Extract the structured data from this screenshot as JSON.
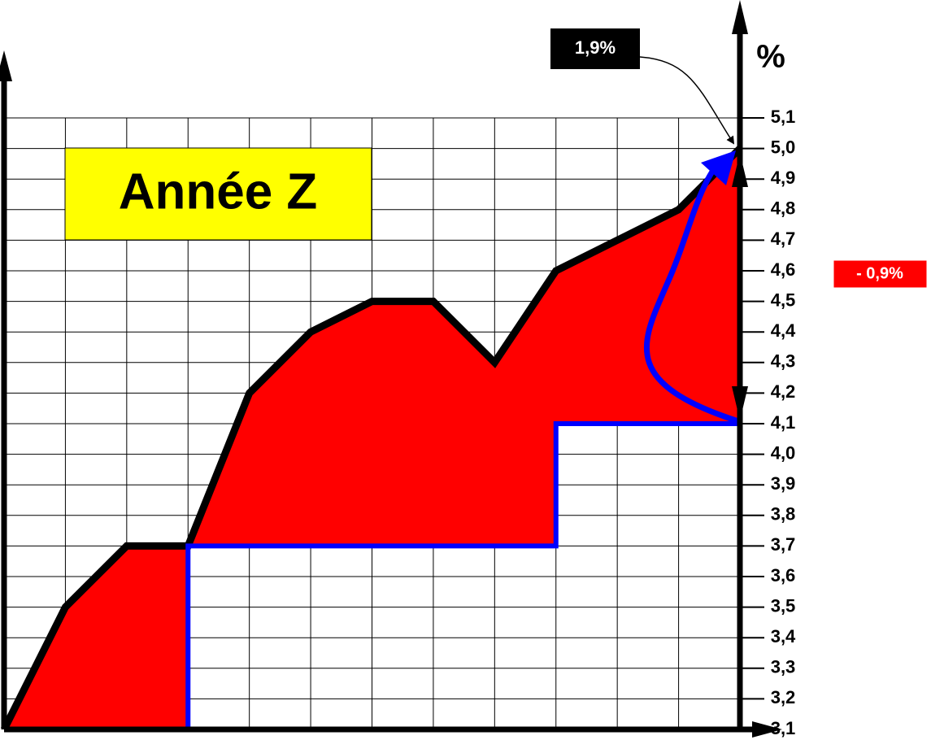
{
  "chart_data": {
    "type": "line",
    "categories": [
      null,
      null,
      null,
      null,
      null,
      null,
      null,
      null,
      null,
      null,
      null,
      null,
      null
    ],
    "series": [
      {
        "color": "#000000",
        "values": [
          3.1,
          3.5,
          3.7,
          3.7,
          4.2,
          4.4,
          4.5,
          4.5,
          4.3,
          4.6,
          4.7,
          4.8,
          5.0
        ]
      },
      {
        "color": "#0000ff",
        "step": true,
        "values": [
          3.1,
          3.1,
          3.1,
          3.7,
          3.7,
          3.7,
          3.7,
          3.7,
          3.7,
          4.1,
          4.1,
          4.1,
          4.1
        ]
      }
    ],
    "fill_color": "#ff0000",
    "ylim": [
      3.1,
      5.1
    ],
    "yticks": [
      {
        "value": 3.1,
        "label": "3,1"
      },
      {
        "value": 3.2,
        "label": "3,2"
      },
      {
        "value": 3.3,
        "label": "3,3"
      },
      {
        "value": 3.4,
        "label": "3,4"
      },
      {
        "value": 3.5,
        "label": "3,5"
      },
      {
        "value": 3.6,
        "label": "3,6"
      },
      {
        "value": 3.7,
        "label": "3,7"
      },
      {
        "value": 3.8,
        "label": "3,8"
      },
      {
        "value": 3.9,
        "label": "3,9"
      },
      {
        "value": 4.0,
        "label": "4,0"
      },
      {
        "value": 4.1,
        "label": "4,1"
      },
      {
        "value": 4.2,
        "label": "4,2"
      },
      {
        "value": 4.3,
        "label": "4,3"
      },
      {
        "value": 4.4,
        "label": "4,4"
      },
      {
        "value": 4.5,
        "label": "4,5"
      },
      {
        "value": 4.6,
        "label": "4,6"
      },
      {
        "value": 4.7,
        "label": "4,7"
      },
      {
        "value": 4.8,
        "label": "4,8"
      },
      {
        "value": 4.9,
        "label": "4,9"
      },
      {
        "value": 5.0,
        "label": "5,0"
      },
      {
        "value": 5.1,
        "label": "5,1"
      }
    ],
    "grid": true,
    "y_label": "%",
    "title": "Année Z",
    "annotations": [
      "1,9%",
      "- 0,9%"
    ]
  }
}
